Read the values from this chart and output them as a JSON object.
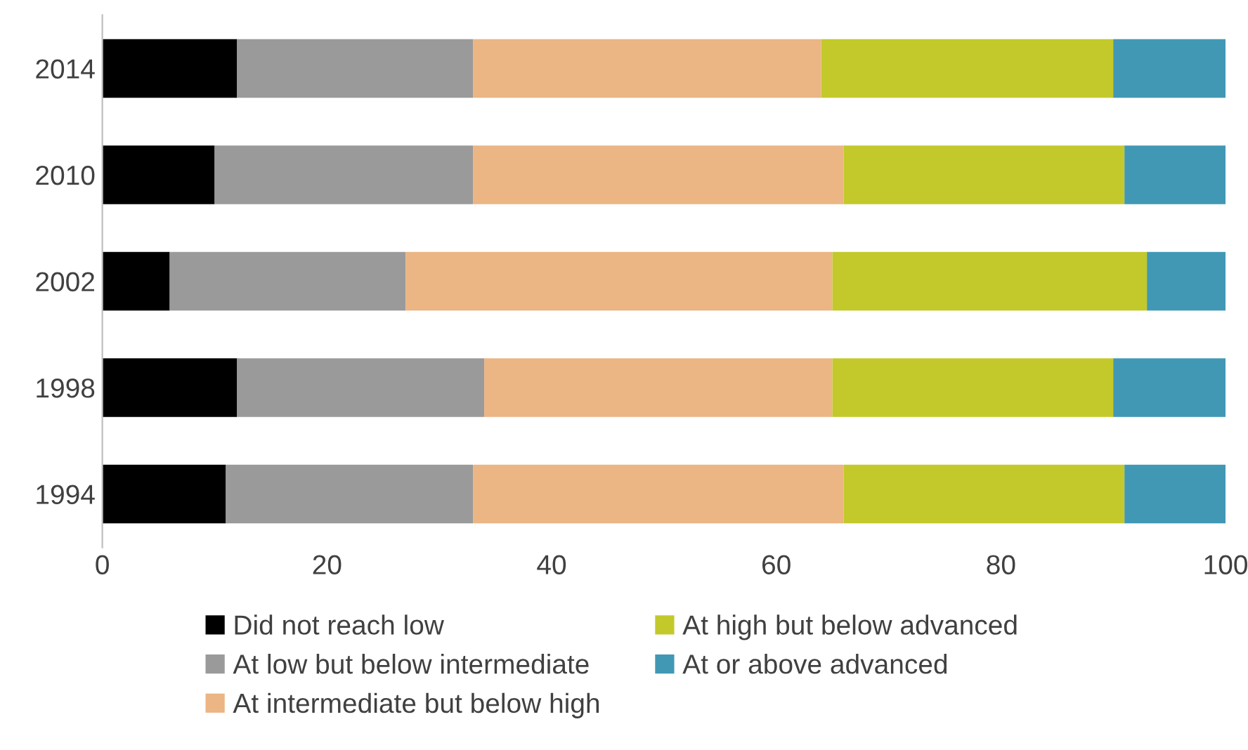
{
  "chart_data": {
    "type": "bar",
    "orientation": "horizontal",
    "stacked": true,
    "categories": [
      "2014",
      "2010",
      "2002",
      "1998",
      "1994"
    ],
    "series": [
      {
        "name": "Did not reach low",
        "color": "#000000",
        "values": [
          12,
          10,
          6,
          12,
          11
        ]
      },
      {
        "name": "At low but below intermediate",
        "color": "#9a9a9a",
        "values": [
          21,
          23,
          21,
          22,
          22
        ]
      },
      {
        "name": "At intermediate but below high",
        "color": "#ebb584",
        "values": [
          31,
          33,
          38,
          31,
          33
        ]
      },
      {
        "name": "At high but below advanced",
        "color": "#c3c92a",
        "values": [
          26,
          25,
          28,
          25,
          25
        ]
      },
      {
        "name": "At or above advanced",
        "color": "#4198b5",
        "values": [
          10,
          9,
          7,
          10,
          9
        ]
      }
    ],
    "xlim": [
      0,
      100
    ],
    "xticks": [
      0,
      20,
      40,
      60,
      80,
      100
    ],
    "grid": false,
    "legend": "bottom"
  }
}
